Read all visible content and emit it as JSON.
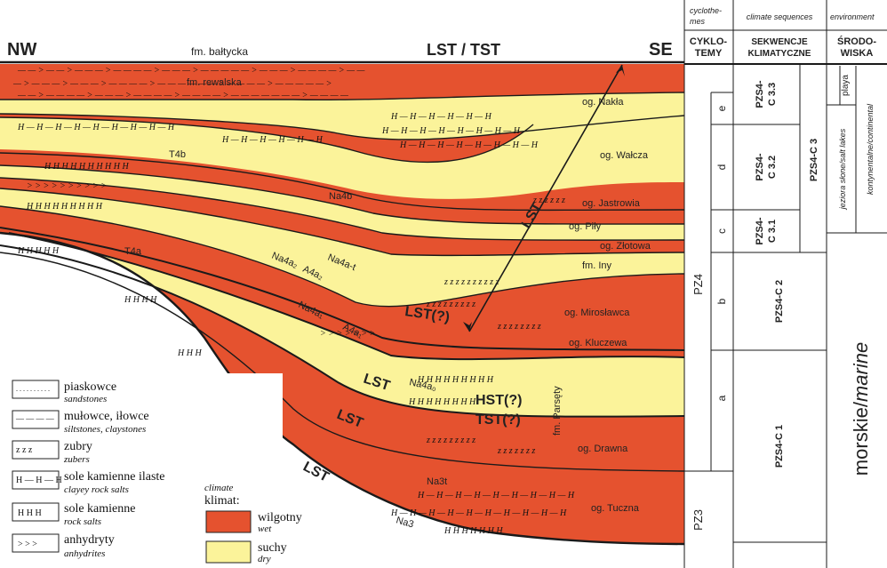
{
  "header": {
    "nw": "NW",
    "se": "SE",
    "formation_top": "fm. bałtycka",
    "systems_tract": "LST / TST"
  },
  "columns": {
    "cyclothems_en": "cyclothe-mes",
    "cyclothems_en_1": "cyclothe-",
    "cyclothems_en_2": "mes",
    "cyclothems_pl_1": "CYKLO-",
    "cyclothems_pl_2": "TEMY",
    "climate_en": "climate sequences",
    "climate_pl_1": "SEKWENCJE",
    "climate_pl_2": "KLIMATYCZNE",
    "env_en": "environment",
    "env_pl_1": "ŚRODO-",
    "env_pl_2": "WISKA"
  },
  "cyclothem_labels": {
    "pz4": "PZ4",
    "pz3": "PZ3",
    "e": "e",
    "d": "d",
    "c": "c",
    "b": "b",
    "a": "a"
  },
  "climate_sequences": {
    "c33_1": "PZS4-",
    "c33_2": "C 3.3",
    "c32_1": "PZS4-",
    "c32_2": "C 3.2",
    "c31_1": "PZS4-",
    "c31_2": "C 3.1",
    "c3": "PZS4-C 3",
    "c2": "PZS4-C 2",
    "c1": "PZS4-C 1"
  },
  "environment": {
    "playa": "playa",
    "salt_lakes": "jeziora słone/salt lakes",
    "continental": "kontynentalne/continental",
    "marine_pl": "morskie/",
    "marine_en": "marine"
  },
  "units": {
    "rewalska": "fm. rewalska",
    "nakla": "og. Nakła",
    "walcza": "og. Wałcza",
    "jastrowia": "og. Jastrowia",
    "pily": "og. Piły",
    "zlotowa": "og. Złotowa",
    "iny": "fm. Iny",
    "miroslawca": "og. Mirosławca",
    "kluczewa": "og. Kluczewa",
    "parsety": "fm. Parsęty",
    "drawna": "og. Drawna",
    "tuczna": "og. Tuczna",
    "t4b": "T4b",
    "t4a": "T4a",
    "na4b": "Na4b",
    "na4a2": "Na4a₂",
    "na4at": "Na4a-t",
    "a4a2": "A4a₂",
    "na4a1": "Na4a₁",
    "a4a1": "A4a₁",
    "na4a0": "Na4a₀",
    "na3t": "Na3t",
    "na3": "Na3"
  },
  "tracts": {
    "lst_arrow": "LST",
    "lst_q": "LST(?)",
    "hst_q": "HST(?)",
    "tst_q": "TST(?)",
    "lst1": "LST",
    "lst2": "LST",
    "lst3": "LST"
  },
  "legend": {
    "sandstones_pl": "piaskowce",
    "sandstones_en": "sandstones",
    "siltstones_pl": "mułowce, iłowce",
    "siltstones_en": "siltstones, claystones",
    "zubers_pl": "zubry",
    "zubers_en": "zubers",
    "clayey_salts_pl": "sole kamienne ilaste",
    "clayey_salts_en": "clayey rock salts",
    "rock_salts_pl": "sole kamienne",
    "rock_salts_en": "rock salts",
    "anhydrites_pl": "anhydryty",
    "anhydrites_en": "anhydrites",
    "climate_en": "climate",
    "climate_pl": "klimat:",
    "wet_pl": "wilgotny",
    "wet_en": "wet",
    "dry_pl": "suchy",
    "dry_en": "dry"
  },
  "colors": {
    "wet": "#e5522f",
    "dry": "#fbf39a",
    "line": "#1a1a1a"
  }
}
